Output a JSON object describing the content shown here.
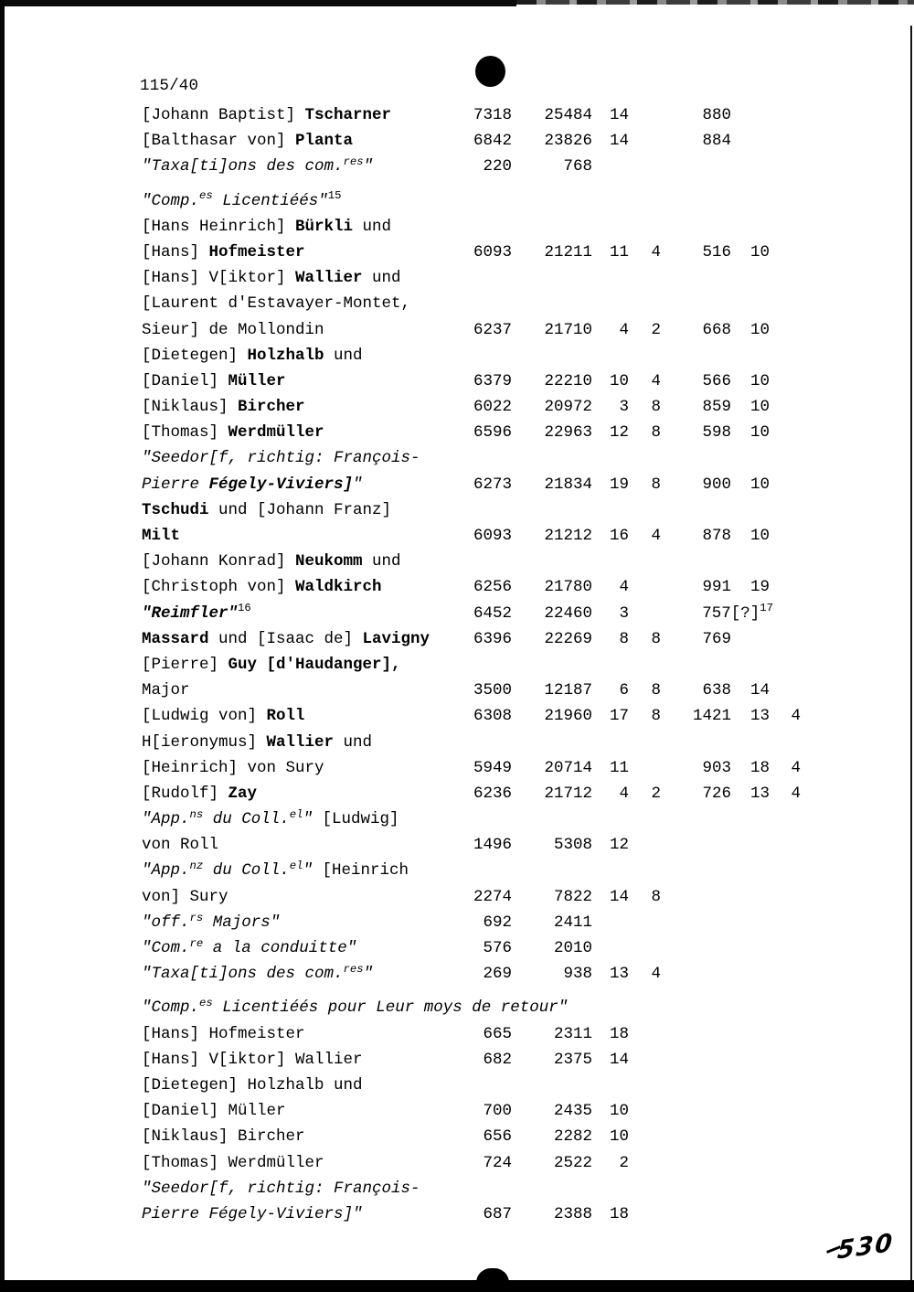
{
  "page": {
    "number": "115/40",
    "handwritten_note": "530"
  },
  "table": {
    "rows": [
      {
        "name": [
          [
            "[Johann Baptist] ",
            "n"
          ],
          [
            "Tscharner",
            "b"
          ]
        ],
        "values": [
          "7318",
          "25484",
          "14",
          "",
          "880",
          "",
          ""
        ]
      },
      {
        "name": [
          [
            "[Balthasar von] ",
            "n"
          ],
          [
            "Planta",
            "b"
          ]
        ],
        "values": [
          "6842",
          "23826",
          "14",
          "",
          "884",
          "",
          ""
        ]
      },
      {
        "name": [
          [
            "\"Taxa[ti]ons des com.",
            "i"
          ],
          [
            "res",
            "si"
          ],
          [
            "\"",
            "i"
          ]
        ],
        "values": [
          "220",
          "768",
          "",
          "",
          "",
          "",
          ""
        ]
      },
      {
        "gap": true,
        "name": [
          [
            "\"Comp.",
            "i"
          ],
          [
            "es",
            "si"
          ],
          [
            " Licentiéés\"",
            "i"
          ],
          [
            "15",
            "sn"
          ]
        ],
        "values": []
      },
      {
        "name": [
          [
            "[Hans Heinrich] ",
            "n"
          ],
          [
            "Bürkli",
            "b"
          ],
          [
            " und",
            "n"
          ]
        ],
        "values": []
      },
      {
        "name": [
          [
            "[Hans] ",
            "n"
          ],
          [
            "Hofmeister",
            "b"
          ]
        ],
        "values": [
          "6093",
          "21211",
          "11",
          "4",
          "516",
          "10",
          ""
        ]
      },
      {
        "name": [
          [
            "[Hans] V[iktor] ",
            "n"
          ],
          [
            "Wallier",
            "b"
          ],
          [
            " und",
            "n"
          ]
        ],
        "values": []
      },
      {
        "name": [
          [
            "[Laurent d'Estavayer-Montet,",
            "n"
          ]
        ],
        "values": []
      },
      {
        "name": [
          [
            "Sieur] de Mollondin",
            "n"
          ]
        ],
        "values": [
          "6237",
          "21710",
          "4",
          "2",
          "668",
          "10",
          ""
        ]
      },
      {
        "name": [
          [
            "[Dietegen] ",
            "n"
          ],
          [
            "Holzhalb",
            "b"
          ],
          [
            " und",
            "n"
          ]
        ],
        "values": []
      },
      {
        "name": [
          [
            "[Daniel] ",
            "n"
          ],
          [
            "Müller",
            "b"
          ]
        ],
        "values": [
          "6379",
          "22210",
          "10",
          "4",
          "566",
          "10",
          ""
        ]
      },
      {
        "name": [
          [
            "[Niklaus] ",
            "n"
          ],
          [
            "Bircher",
            "b"
          ]
        ],
        "values": [
          "6022",
          "20972",
          "3",
          "8",
          "859",
          "10",
          ""
        ]
      },
      {
        "name": [
          [
            "[Thomas] ",
            "n"
          ],
          [
            "Werdmüller",
            "b"
          ]
        ],
        "values": [
          "6596",
          "22963",
          "12",
          "8",
          "598",
          "10",
          ""
        ]
      },
      {
        "name": [
          [
            "\"Seedor[f, richtig: François-",
            "i"
          ]
        ],
        "values": []
      },
      {
        "name": [
          [
            "Pierre ",
            "i"
          ],
          [
            "Fégely-Viviers]",
            "bi"
          ],
          [
            "\"",
            "i"
          ]
        ],
        "values": [
          "6273",
          "21834",
          "19",
          "8",
          "900",
          "10",
          ""
        ]
      },
      {
        "name": [
          [
            "Tschudi",
            "b"
          ],
          [
            " und [Johann Franz]",
            "n"
          ]
        ],
        "values": []
      },
      {
        "name": [
          [
            "Milt",
            "b"
          ]
        ],
        "values": [
          "6093",
          "21212",
          "16",
          "4",
          "878",
          "10",
          ""
        ]
      },
      {
        "name": [
          [
            "[Johann Konrad] ",
            "n"
          ],
          [
            "Neukomm",
            "b"
          ],
          [
            " und",
            "n"
          ]
        ],
        "values": []
      },
      {
        "name": [
          [
            "[Christoph von] ",
            "n"
          ],
          [
            "Waldkirch",
            "b"
          ]
        ],
        "values": [
          "6256",
          "21780",
          "4",
          "",
          "991",
          "19",
          ""
        ]
      },
      {
        "name": [
          [
            "\"Reimfler\"",
            "bi"
          ],
          [
            "16",
            "sn"
          ]
        ],
        "values": [
          "6452",
          "22460",
          "3",
          "",
          "757[?]^17",
          "",
          ""
        ]
      },
      {
        "name": [
          [
            "Massard",
            "b"
          ],
          [
            " und [Isaac de] ",
            "n"
          ],
          [
            "Lavigny",
            "b"
          ]
        ],
        "values": [
          "6396",
          "22269",
          "8",
          "8",
          "769",
          "",
          ""
        ]
      },
      {
        "name": [
          [
            "[Pierre] ",
            "n"
          ],
          [
            "Guy [d'Haudanger],",
            "b"
          ]
        ],
        "values": []
      },
      {
        "name": [
          [
            "Major",
            "n"
          ]
        ],
        "values": [
          "3500",
          "12187",
          "6",
          "8",
          "638",
          "14",
          ""
        ]
      },
      {
        "name": [
          [
            "[Ludwig von] ",
            "n"
          ],
          [
            "Roll",
            "b"
          ]
        ],
        "values": [
          "6308",
          "21960",
          "17",
          "8",
          "1421",
          "13",
          "4"
        ]
      },
      {
        "name": [
          [
            "H[ieronymus] ",
            "n"
          ],
          [
            "Wallier",
            "b"
          ],
          [
            " und",
            "n"
          ]
        ],
        "values": []
      },
      {
        "name": [
          [
            "[Heinrich] von Sury",
            "n"
          ]
        ],
        "values": [
          "5949",
          "20714",
          "11",
          "",
          "903",
          "18",
          "4"
        ]
      },
      {
        "name": [
          [
            "[Rudolf] ",
            "n"
          ],
          [
            "Zay",
            "b"
          ]
        ],
        "values": [
          "6236",
          "21712",
          "4",
          "2",
          "726",
          "13",
          "4"
        ]
      },
      {
        "name": [
          [
            "\"App.",
            "i"
          ],
          [
            "ns",
            "si"
          ],
          [
            " du Coll.",
            "i"
          ],
          [
            "el",
            "si"
          ],
          [
            "\"",
            "i"
          ],
          [
            " [Ludwig]",
            "n"
          ]
        ],
        "values": []
      },
      {
        "name": [
          [
            "von Roll",
            "n"
          ]
        ],
        "values": [
          "1496",
          "5308",
          "12",
          "",
          "",
          "",
          ""
        ]
      },
      {
        "name": [
          [
            "\"App.",
            "i"
          ],
          [
            "nz",
            "si"
          ],
          [
            " du Coll.",
            "i"
          ],
          [
            "el",
            "si"
          ],
          [
            "\"",
            "i"
          ],
          [
            " [Heinrich",
            "n"
          ]
        ],
        "values": []
      },
      {
        "name": [
          [
            "von] Sury",
            "n"
          ]
        ],
        "values": [
          "2274",
          "7822",
          "14",
          "8",
          "",
          "",
          ""
        ]
      },
      {
        "name": [
          [
            "\"off.",
            "i"
          ],
          [
            "rs",
            "si"
          ],
          [
            " Majors\"",
            "i"
          ]
        ],
        "values": [
          "692",
          "2411",
          "",
          "",
          "",
          "",
          ""
        ]
      },
      {
        "name": [
          [
            "\"Com.",
            "i"
          ],
          [
            "re",
            "si"
          ],
          [
            " a la conduitte\"",
            "i"
          ]
        ],
        "values": [
          "576",
          "2010",
          "",
          "",
          "",
          "",
          ""
        ]
      },
      {
        "name": [
          [
            "\"Taxa[ti]ons des com.",
            "i"
          ],
          [
            "res",
            "si"
          ],
          [
            "\"",
            "i"
          ]
        ],
        "values": [
          "269",
          "938",
          "13",
          "4",
          "",
          "",
          ""
        ]
      },
      {
        "gap": true,
        "name": [
          [
            "\"Comp.",
            "i"
          ],
          [
            "es",
            "si"
          ],
          [
            " Licentiéés pour Leur moys de retour\"",
            "i"
          ]
        ],
        "values": []
      },
      {
        "name": [
          [
            "[Hans] Hofmeister",
            "n"
          ]
        ],
        "values": [
          "665",
          "2311",
          "18",
          "",
          "",
          "",
          ""
        ]
      },
      {
        "name": [
          [
            "[Hans] V[iktor] Wallier",
            "n"
          ]
        ],
        "values": [
          "682",
          "2375",
          "14",
          "",
          "",
          "",
          ""
        ]
      },
      {
        "name": [
          [
            "[Dietegen] Holzhalb und",
            "n"
          ]
        ],
        "values": []
      },
      {
        "name": [
          [
            "[Daniel] Müller",
            "n"
          ]
        ],
        "values": [
          "700",
          "2435",
          "10",
          "",
          "",
          "",
          ""
        ]
      },
      {
        "name": [
          [
            "[Niklaus] Bircher",
            "n"
          ]
        ],
        "values": [
          "656",
          "2282",
          "10",
          "",
          "",
          "",
          ""
        ]
      },
      {
        "name": [
          [
            "[Thomas] Werdmüller",
            "n"
          ]
        ],
        "values": [
          "724",
          "2522",
          "2",
          "",
          "",
          "",
          ""
        ]
      },
      {
        "name": [
          [
            "\"Seedor[f, richtig: François-",
            "i"
          ]
        ],
        "values": []
      },
      {
        "name": [
          [
            "Pierre Fégely-Viviers]\"",
            "i"
          ]
        ],
        "values": [
          "687",
          "2388",
          "18",
          "",
          "",
          "",
          ""
        ]
      }
    ]
  }
}
